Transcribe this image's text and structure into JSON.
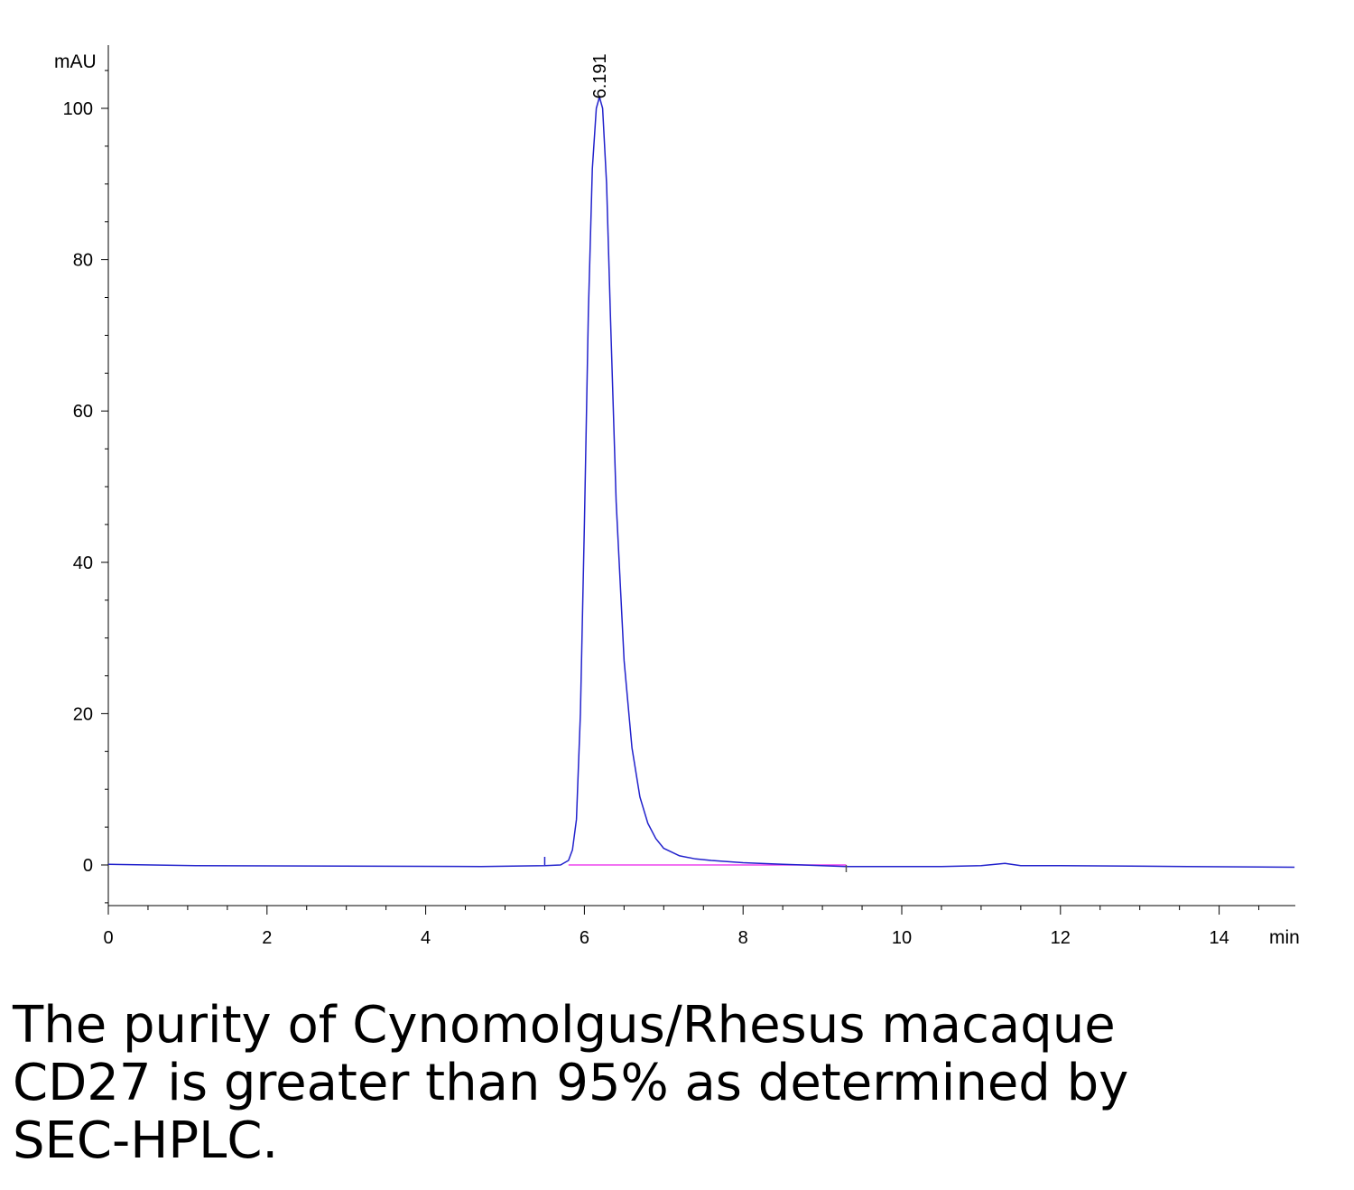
{
  "chart_data": {
    "type": "line",
    "y_unit": "mAU",
    "x_unit": "min",
    "xlim": [
      0,
      15
    ],
    "ylim": [
      -5,
      108
    ],
    "x_ticks": [
      0,
      2,
      4,
      6,
      8,
      10,
      12,
      14
    ],
    "x_tick_labels": [
      "0",
      "2",
      "4",
      "6",
      "8",
      "10",
      "12",
      "14"
    ],
    "y_ticks": [
      0,
      20,
      40,
      60,
      80,
      100
    ],
    "y_tick_labels": [
      "0",
      "20",
      "40",
      "60",
      "80",
      "100"
    ],
    "grid": false,
    "series": [
      {
        "color": "#2222cc",
        "x": [
          0,
          1.1,
          4.7,
          5.5,
          5.7,
          5.8,
          5.85,
          5.9,
          5.95,
          6.0,
          6.05,
          6.1,
          6.15,
          6.19,
          6.23,
          6.28,
          6.33,
          6.4,
          6.5,
          6.6,
          6.7,
          6.8,
          6.9,
          7.0,
          7.2,
          7.4,
          7.6,
          8.0,
          8.5,
          9.3,
          10.5,
          11.0,
          11.3,
          11.5,
          12.0,
          13.6,
          14.95
        ],
        "y": [
          0.1,
          -0.1,
          -0.2,
          -0.1,
          0.0,
          0.6,
          2.0,
          6.0,
          20.0,
          45.0,
          73.0,
          92.0,
          100.0,
          101.5,
          100.0,
          90.0,
          72.0,
          48.0,
          27.0,
          15.5,
          9.0,
          5.5,
          3.5,
          2.2,
          1.2,
          0.8,
          0.6,
          0.3,
          0.1,
          -0.2,
          -0.2,
          -0.1,
          0.2,
          -0.1,
          -0.1,
          -0.2,
          -0.3
        ]
      },
      {
        "color": "#ee44ee",
        "x": [
          5.8,
          9.3
        ],
        "y": [
          0.0,
          0.0
        ]
      }
    ],
    "annotations": [
      {
        "text": "6.191",
        "x": 6.191,
        "y": 101.5
      }
    ]
  },
  "caption": {
    "line1": "The purity of Cynomolgus/Rhesus macaque",
    "line2": "CD27 is greater than 95% as determined by",
    "line3": "SEC-HPLC."
  }
}
